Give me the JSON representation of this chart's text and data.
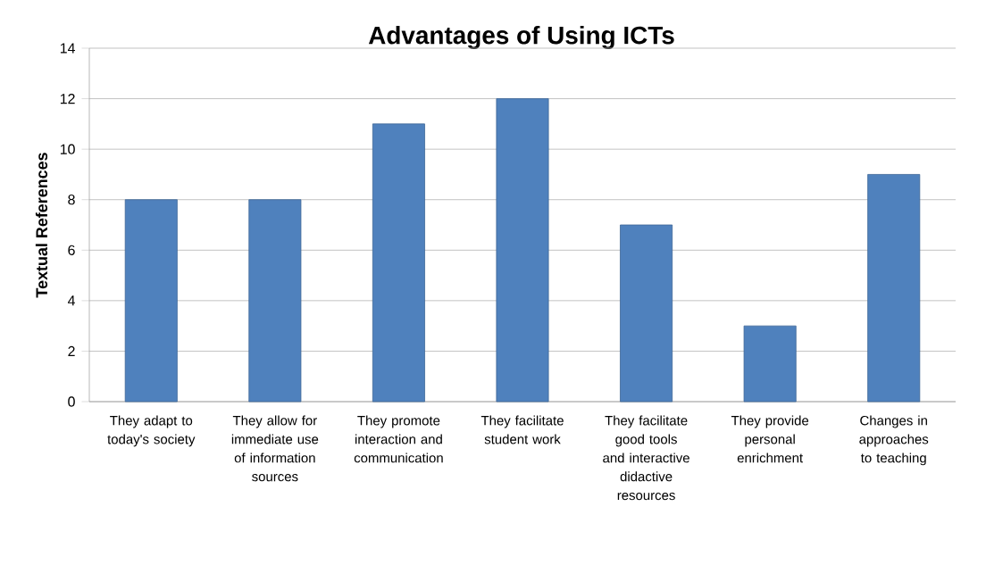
{
  "chart_data": {
    "type": "bar",
    "title": "Advantages of Using ICTs",
    "ylabel": "Textual References",
    "categories": [
      "They adapt to today's society",
      "They allow for immediate use of information sources",
      "They promote interaction and communication",
      "They facilitate student work",
      "They facilitate good tools and interactive didactive resources",
      "They provide personal enrichment",
      "Changes in approaches to teaching"
    ],
    "values": [
      8,
      8,
      11,
      12,
      7,
      3,
      9
    ],
    "color": "#4f81bd",
    "ylim": [
      0,
      14
    ],
    "yticks": [
      0,
      2,
      4,
      6,
      8,
      10,
      12,
      14
    ],
    "grid": "y"
  }
}
